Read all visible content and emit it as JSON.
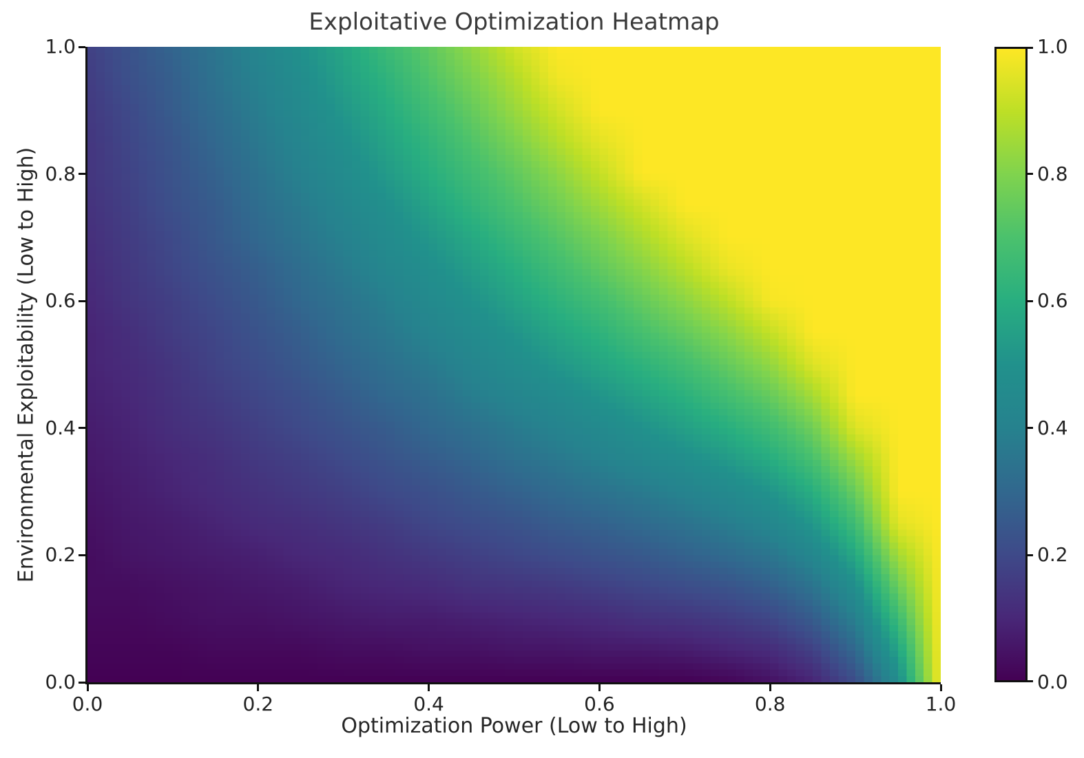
{
  "figure": {
    "background": "#ffffff"
  },
  "chart_data": {
    "type": "heatmap",
    "title": "Exploitative Optimization Heatmap",
    "xlabel": "Optimization Power (Low to High)",
    "ylabel": "Environmental Exploitability (Low to High)",
    "x_range": [
      0.0,
      1.0
    ],
    "y_range": [
      0.0,
      1.0
    ],
    "value_range": [
      0.0,
      1.0
    ],
    "x_ticks": [
      "0.0",
      "0.2",
      "0.4",
      "0.6",
      "0.8",
      "1.0"
    ],
    "y_ticks": [
      "0.0",
      "0.2",
      "0.4",
      "0.6",
      "0.8",
      "1.0"
    ],
    "resolution": 100,
    "legend_position": "none",
    "colorbar": {
      "ticks": [
        "0.0",
        "0.2",
        "0.4",
        "0.6",
        "0.8",
        "1.0"
      ],
      "range": [
        0.0,
        1.0
      ]
    },
    "colormap": {
      "name": "viridis",
      "stops": [
        [
          0.0,
          "#440154"
        ],
        [
          0.1,
          "#482878"
        ],
        [
          0.2,
          "#3e4a89"
        ],
        [
          0.3,
          "#31688e"
        ],
        [
          0.4,
          "#26828e"
        ],
        [
          0.5,
          "#21918c"
        ],
        [
          0.6,
          "#28ae80"
        ],
        [
          0.7,
          "#4ac16d"
        ],
        [
          0.8,
          "#7fd34e"
        ],
        [
          0.9,
          "#bddf26"
        ],
        [
          1.0,
          "#fde725"
        ]
      ]
    },
    "values_grid": {
      "note": "values sampled from heatmap; values[yi][xi], y ascending (first row = bottom edge y=0)",
      "x": [
        0,
        0.05,
        0.1,
        0.15,
        0.2,
        0.25,
        0.3,
        0.35,
        0.4,
        0.45,
        0.5,
        0.55,
        0.6,
        0.65,
        0.7,
        0.75,
        0.8,
        0.85,
        0.9,
        0.95,
        1
      ],
      "y": [
        0,
        0.05,
        0.1,
        0.15,
        0.2,
        0.25,
        0.3,
        0.35,
        0.4,
        0.45,
        0.5,
        0.55,
        0.6,
        0.65,
        0.7,
        0.75,
        0.8,
        0.85,
        0.9,
        0.95,
        1
      ],
      "values": [
        [
          0,
          0,
          0,
          0,
          0,
          0,
          0,
          0,
          0,
          0,
          0,
          0,
          0,
          0,
          0,
          0.01,
          0.04,
          0.09,
          0.21,
          0.46,
          1
        ],
        [
          0.01,
          0.01,
          0.01,
          0.02,
          0.02,
          0.02,
          0.03,
          0.03,
          0.04,
          0.04,
          0.05,
          0.05,
          0.06,
          0.06,
          0.07,
          0.09,
          0.11,
          0.17,
          0.3,
          0.56,
          1
        ],
        [
          0.02,
          0.02,
          0.03,
          0.04,
          0.04,
          0.05,
          0.06,
          0.07,
          0.07,
          0.08,
          0.09,
          0.1,
          0.11,
          0.13,
          0.14,
          0.16,
          0.19,
          0.26,
          0.39,
          0.66,
          1
        ],
        [
          0.03,
          0.03,
          0.04,
          0.05,
          0.06,
          0.07,
          0.09,
          0.1,
          0.11,
          0.13,
          0.14,
          0.15,
          0.17,
          0.19,
          0.21,
          0.23,
          0.27,
          0.34,
          0.48,
          0.76,
          1
        ],
        [
          0.03,
          0.05,
          0.06,
          0.07,
          0.08,
          0.1,
          0.11,
          0.13,
          0.15,
          0.17,
          0.19,
          0.21,
          0.23,
          0.25,
          0.28,
          0.31,
          0.35,
          0.43,
          0.58,
          0.86,
          1
        ],
        [
          0.04,
          0.06,
          0.07,
          0.09,
          0.11,
          0.12,
          0.14,
          0.16,
          0.19,
          0.21,
          0.23,
          0.26,
          0.28,
          0.31,
          0.34,
          0.38,
          0.43,
          0.52,
          0.67,
          0.96,
          1
        ],
        [
          0.05,
          0.07,
          0.09,
          0.11,
          0.13,
          0.15,
          0.17,
          0.2,
          0.22,
          0.25,
          0.28,
          0.31,
          0.34,
          0.37,
          0.41,
          0.45,
          0.51,
          0.6,
          0.76,
          1,
          1
        ],
        [
          0.06,
          0.08,
          0.1,
          0.12,
          0.15,
          0.17,
          0.2,
          0.23,
          0.26,
          0.29,
          0.33,
          0.36,
          0.4,
          0.44,
          0.48,
          0.53,
          0.59,
          0.69,
          0.85,
          1,
          1
        ],
        [
          0.07,
          0.09,
          0.12,
          0.14,
          0.17,
          0.2,
          0.23,
          0.26,
          0.3,
          0.33,
          0.37,
          0.41,
          0.45,
          0.5,
          0.55,
          0.6,
          0.67,
          0.77,
          0.95,
          1,
          1
        ],
        [
          0.08,
          0.1,
          0.13,
          0.16,
          0.19,
          0.22,
          0.26,
          0.3,
          0.33,
          0.38,
          0.42,
          0.46,
          0.51,
          0.56,
          0.61,
          0.68,
          0.75,
          0.86,
          1,
          1,
          1
        ],
        [
          0.09,
          0.11,
          0.14,
          0.18,
          0.21,
          0.25,
          0.29,
          0.33,
          0.37,
          0.42,
          0.47,
          0.52,
          0.57,
          0.62,
          0.68,
          0.75,
          0.83,
          0.95,
          1,
          1,
          1
        ],
        [
          0.09,
          0.12,
          0.16,
          0.19,
          0.23,
          0.27,
          0.32,
          0.36,
          0.41,
          0.46,
          0.51,
          0.57,
          0.62,
          0.69,
          0.75,
          0.82,
          0.91,
          1,
          1,
          1,
          1
        ],
        [
          0.1,
          0.14,
          0.17,
          0.21,
          0.25,
          0.3,
          0.34,
          0.39,
          0.45,
          0.5,
          0.56,
          0.62,
          0.68,
          0.75,
          0.82,
          0.9,
          0.99,
          1,
          1,
          1,
          1
        ],
        [
          0.11,
          0.15,
          0.19,
          0.23,
          0.27,
          0.32,
          0.37,
          0.43,
          0.48,
          0.54,
          0.6,
          0.67,
          0.74,
          0.81,
          0.89,
          0.97,
          1,
          1,
          1,
          1,
          1
        ],
        [
          0.12,
          0.16,
          0.2,
          0.25,
          0.3,
          0.35,
          0.4,
          0.46,
          0.52,
          0.58,
          0.65,
          0.72,
          0.79,
          0.87,
          0.95,
          1,
          1,
          1,
          1,
          1,
          1
        ],
        [
          0.13,
          0.17,
          0.22,
          0.26,
          0.32,
          0.37,
          0.43,
          0.49,
          0.56,
          0.63,
          0.7,
          0.77,
          0.85,
          0.93,
          1,
          1,
          1,
          1,
          1,
          1,
          1
        ],
        [
          0.14,
          0.18,
          0.23,
          0.28,
          0.34,
          0.4,
          0.46,
          0.53,
          0.6,
          0.67,
          0.74,
          0.82,
          0.91,
          1,
          1,
          1,
          1,
          1,
          1,
          1,
          1
        ],
        [
          0.14,
          0.19,
          0.24,
          0.3,
          0.36,
          0.42,
          0.49,
          0.56,
          0.63,
          0.71,
          0.79,
          0.88,
          0.96,
          1,
          1,
          1,
          1,
          1,
          1,
          1,
          1
        ],
        [
          0.15,
          0.2,
          0.26,
          0.32,
          0.38,
          0.45,
          0.52,
          0.59,
          0.67,
          0.75,
          0.84,
          0.93,
          1,
          1,
          1,
          1,
          1,
          1,
          1,
          1,
          1
        ],
        [
          0.16,
          0.22,
          0.27,
          0.34,
          0.4,
          0.47,
          0.55,
          0.62,
          0.71,
          0.79,
          0.88,
          0.98,
          1,
          1,
          1,
          1,
          1,
          1,
          1,
          1,
          1
        ],
        [
          0.17,
          0.23,
          0.29,
          0.35,
          0.42,
          0.5,
          0.57,
          0.66,
          0.74,
          0.83,
          0.93,
          1,
          1,
          1,
          1,
          1,
          1,
          1,
          1,
          1,
          1
        ]
      ]
    }
  }
}
